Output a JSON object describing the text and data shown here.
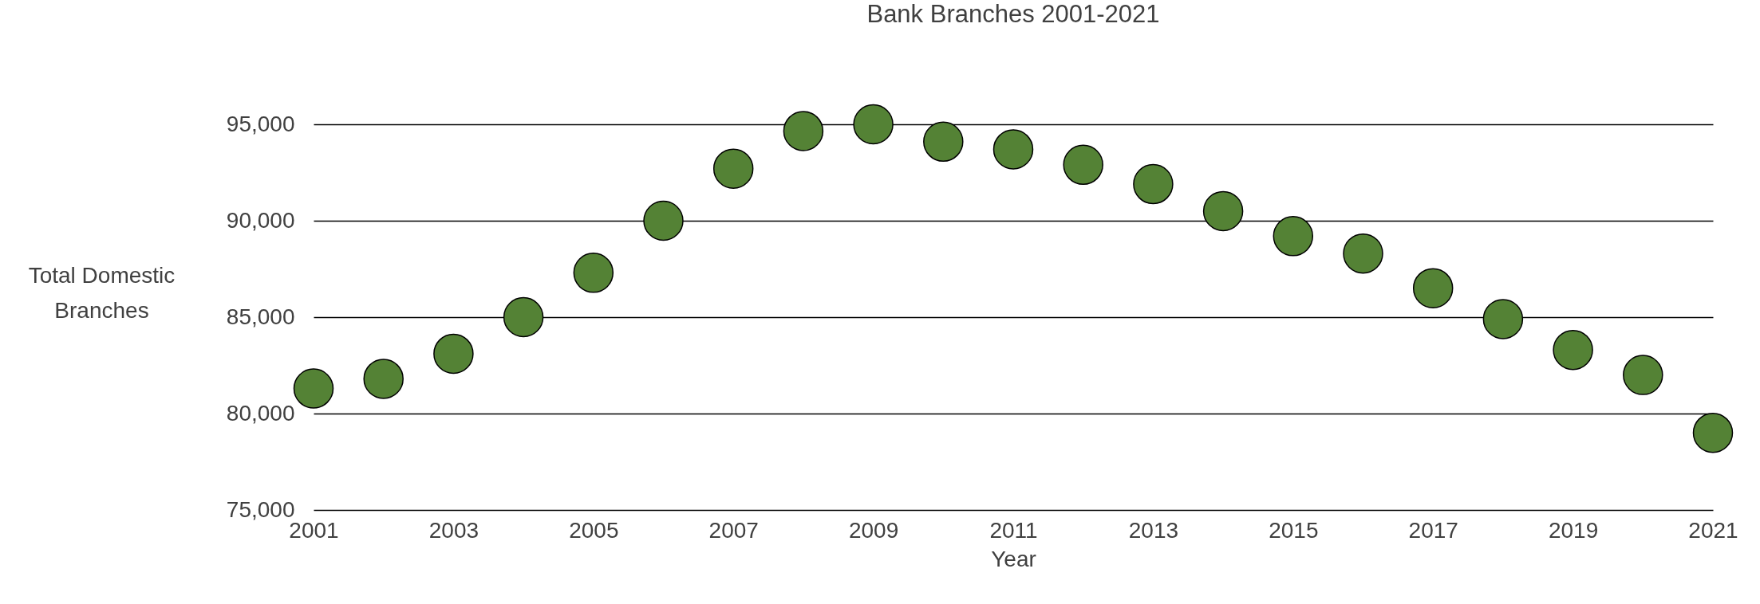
{
  "chart_data": {
    "type": "scatter",
    "title": "Bank Branches 2001-2021",
    "xlabel": "Year",
    "ylabel": "Total Domestic Branches",
    "x": [
      2001,
      2002,
      2003,
      2004,
      2005,
      2006,
      2007,
      2008,
      2009,
      2010,
      2011,
      2012,
      2013,
      2014,
      2015,
      2016,
      2017,
      2018,
      2019,
      2020,
      2021
    ],
    "series": [
      {
        "color": "#548235",
        "values": [
          81300,
          81800,
          83100,
          85000,
          87300,
          90000,
          92700,
          94650,
          95000,
          94100,
          93700,
          92900,
          91900,
          90500,
          89200,
          88300,
          86500,
          84900,
          83300,
          82000,
          79000
        ]
      }
    ],
    "xlim": [
      2001,
      2021
    ],
    "xticks": [
      2001,
      2003,
      2005,
      2007,
      2009,
      2011,
      2013,
      2015,
      2017,
      2019,
      2021
    ],
    "ylim": [
      75000,
      95000
    ],
    "yticks": [
      {
        "value": 75000,
        "label": "75,000"
      },
      {
        "value": 80000,
        "label": "80,000"
      },
      {
        "value": 85000,
        "label": "85,000"
      },
      {
        "value": 90000,
        "label": "90,000"
      },
      {
        "value": 95000,
        "label": "95,000"
      }
    ],
    "grid": "y",
    "marker": "circle"
  }
}
